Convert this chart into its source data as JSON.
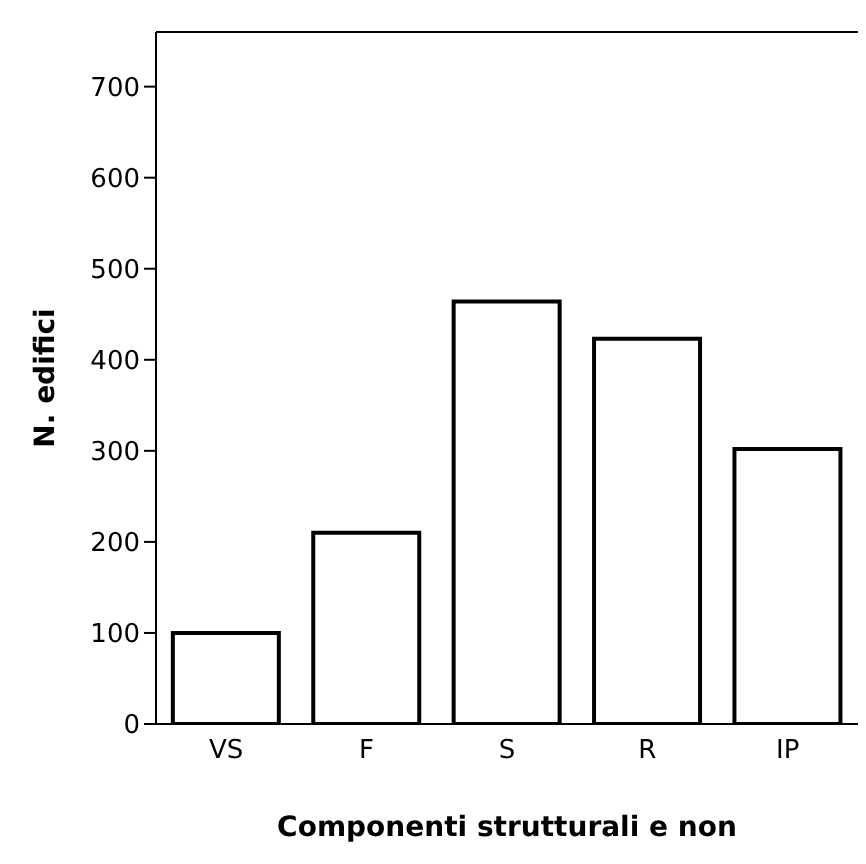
{
  "chart_data": {
    "type": "bar",
    "xlabel": "Componenti strutturali e non",
    "ylabel": "N. edifici",
    "categories": [
      "VS",
      "F",
      "S",
      "R",
      "IP"
    ],
    "values": [
      100,
      210,
      464,
      423,
      302
    ],
    "color": "#ffffff",
    "ylim": [
      0,
      760
    ],
    "yticks": [
      0,
      100,
      200,
      300,
      400,
      500,
      600,
      700
    ],
    "grid": false
  }
}
